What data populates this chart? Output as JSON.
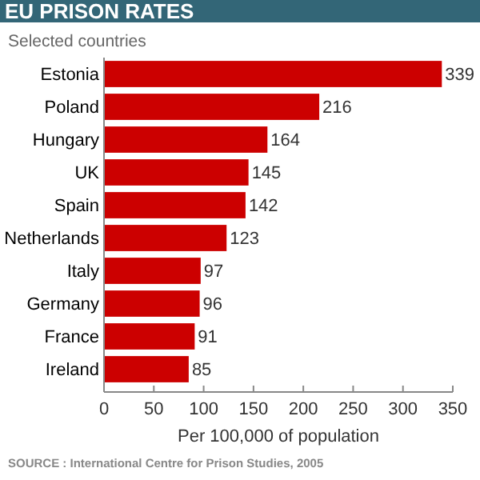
{
  "chart_data": {
    "type": "bar",
    "orientation": "horizontal",
    "title": "EU PRISON RATES",
    "subtitle": "Selected countries",
    "xlabel": "Per 100,000 of population",
    "categories": [
      "Estonia",
      "Poland",
      "Hungary",
      "UK",
      "Spain",
      "Netherlands",
      "Italy",
      "Germany",
      "France",
      "Ireland"
    ],
    "values": [
      339,
      216,
      164,
      145,
      142,
      123,
      97,
      96,
      91,
      85
    ],
    "color": "#cc0000",
    "data_labels": true,
    "xlim": [
      0,
      350
    ],
    "xticks": [
      0,
      50,
      100,
      150,
      200,
      250,
      300,
      350
    ],
    "grid": false,
    "annotations": [
      "SOURCE : International Centre for Prison Studies, 2005"
    ]
  }
}
